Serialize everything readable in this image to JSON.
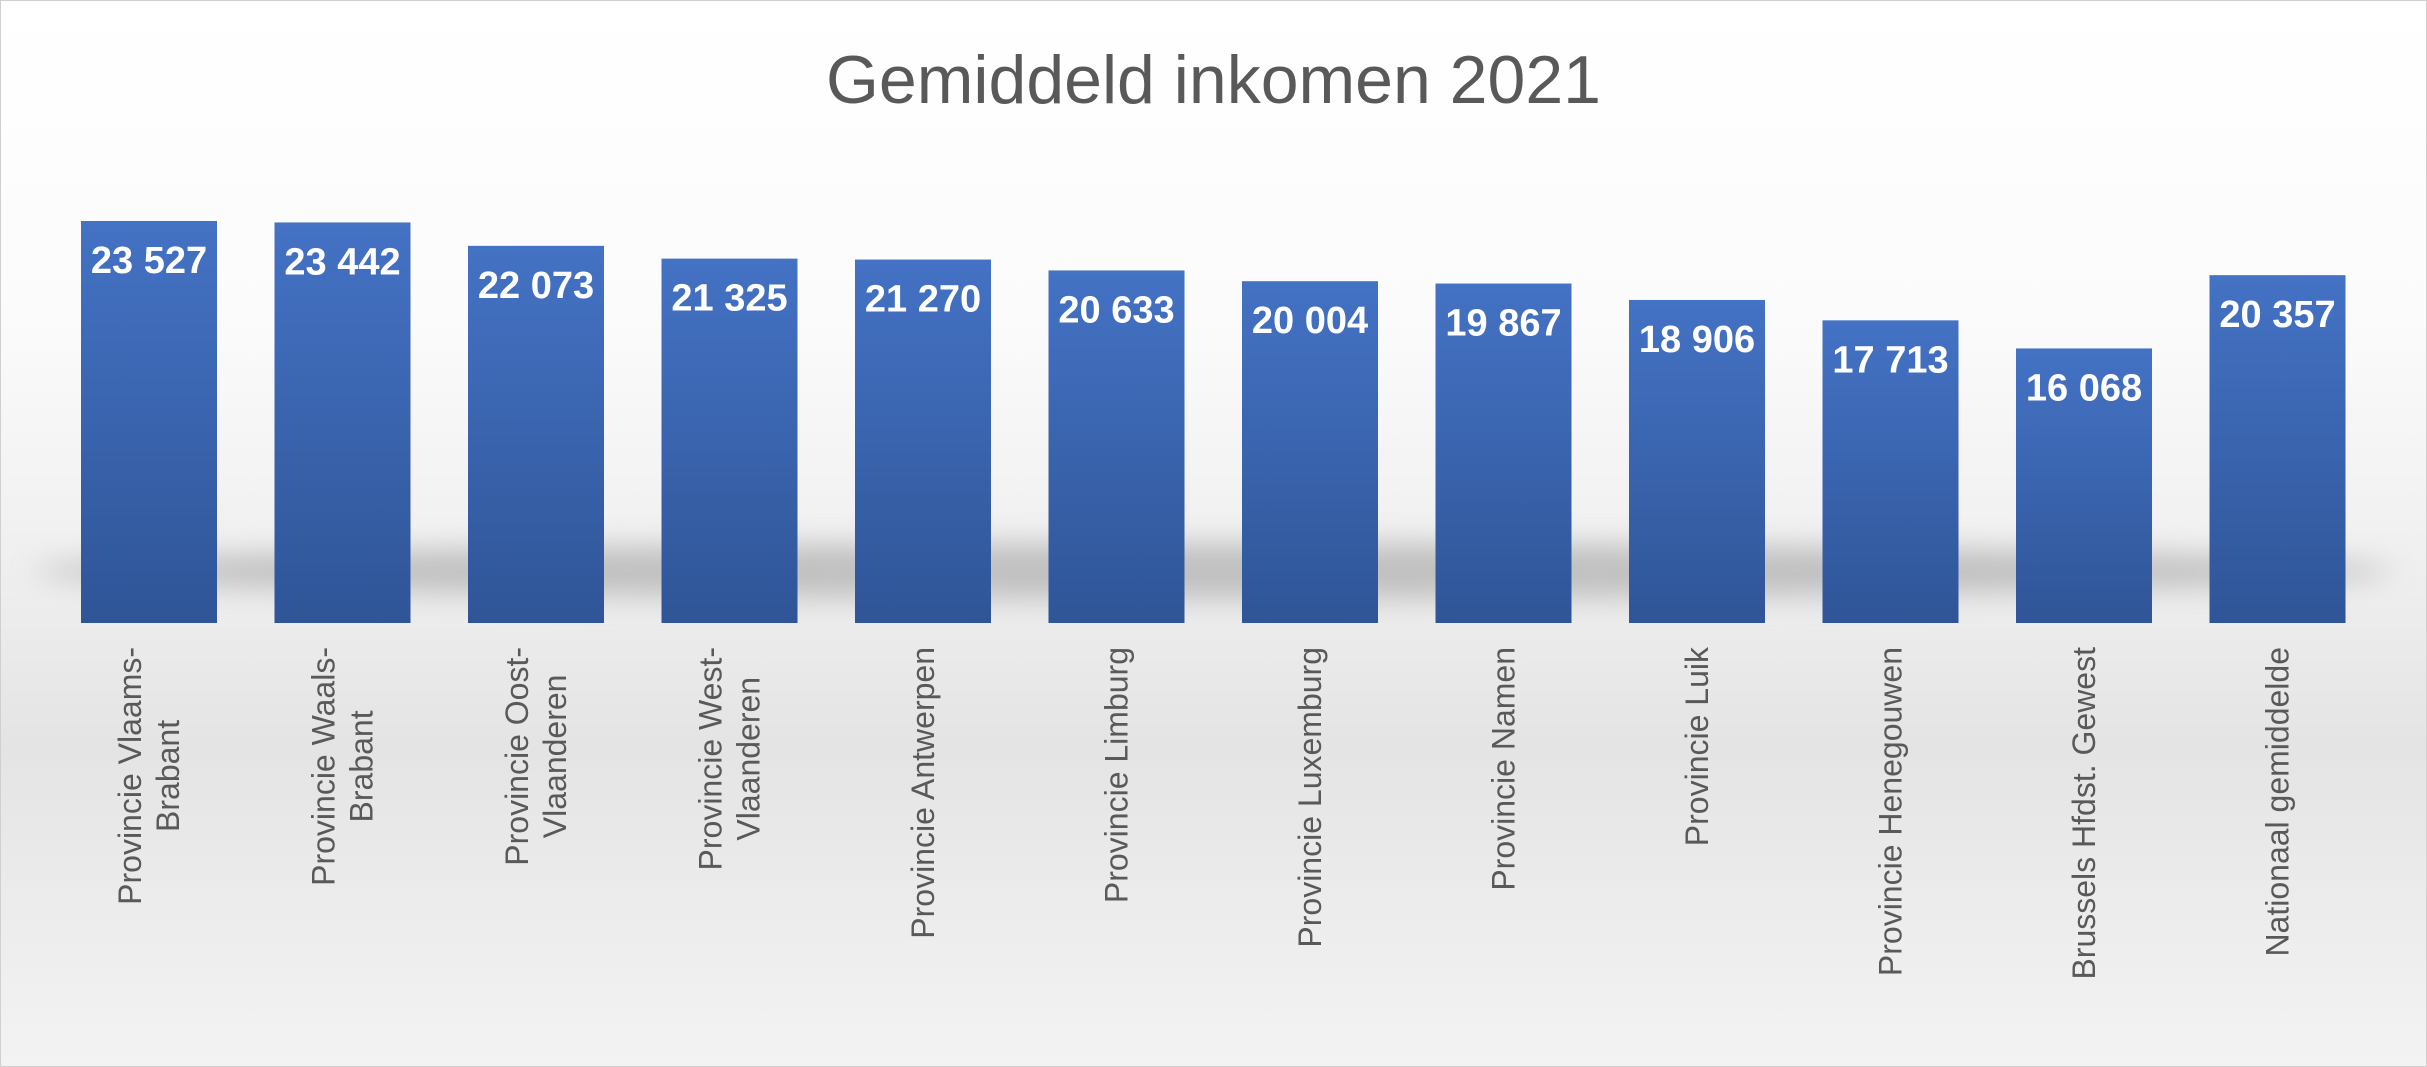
{
  "chart_data": {
    "type": "bar",
    "title": "Gemiddeld inkomen 2021",
    "xlabel": "",
    "ylabel": "",
    "categories": [
      "Provincie Vlaams-Brabant",
      "Provincie Waals-Brabant",
      "Provincie Oost-Vlaanderen",
      "Provincie West-Vlaanderen",
      "Provincie Antwerpen",
      "Provincie Limburg",
      "Provincie Luxemburg",
      "Provincie Namen",
      "Provincie Luik",
      "Provincie Henegouwen",
      "Brussels Hfdst. Gewest",
      "Nationaal gemiddelde"
    ],
    "category_lines": [
      [
        "Provincie Vlaams-",
        "Brabant"
      ],
      [
        "Provincie Waals-",
        "Brabant"
      ],
      [
        "Provincie Oost-",
        "Vlaanderen"
      ],
      [
        "Provincie West-",
        "Vlaanderen"
      ],
      [
        "Provincie Antwerpen"
      ],
      [
        "Provincie Limburg"
      ],
      [
        "Provincie Luxemburg"
      ],
      [
        "Provincie Namen"
      ],
      [
        "Provincie Luik"
      ],
      [
        "Provincie Henegouwen"
      ],
      [
        "Brussels Hfdst. Gewest"
      ],
      [
        "Nationaal gemiddelde"
      ]
    ],
    "values": [
      23527,
      23442,
      22073,
      21325,
      21270,
      20633,
      20004,
      19867,
      18906,
      17713,
      16068,
      20357
    ],
    "value_labels": [
      "23 527",
      "23 442",
      "22 073",
      "21 325",
      "21 270",
      "20 633",
      "20 004",
      "19 867",
      "18 906",
      "17 713",
      "16 068",
      "20 357"
    ],
    "bar_color": "#4472C4",
    "bar_color_dark": "#2F5597",
    "label_color": "#FFFFFF",
    "grid": false,
    "legend": "none"
  }
}
